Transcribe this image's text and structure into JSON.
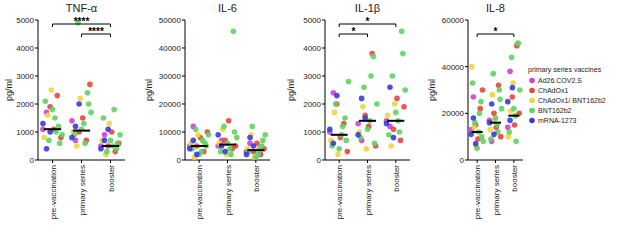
{
  "chart_data": [
    {
      "type": "scatter",
      "title": "TNF-α",
      "y_label": "pg/ml",
      "xlim": [
        -0.5,
        2.5
      ],
      "xticks": [
        {
          "value": 0,
          "label": "pre-vaccination"
        },
        {
          "value": 1,
          "label": "primary series"
        },
        {
          "value": 2,
          "label": "booster"
        }
      ],
      "ylim": [
        0,
        5000
      ],
      "yticks": [
        0,
        1000,
        2000,
        3000,
        4000,
        5000
      ],
      "medians": [
        1100,
        1050,
        500
      ],
      "annotations": [
        {
          "text": "****",
          "x": [
            1,
            2
          ]
        },
        {
          "text": "****",
          "x": [
            0,
            2
          ]
        }
      ],
      "series": [
        {
          "name": "Ad26.COV2.S",
          "color": "#cc44cc",
          "x": [
            0,
            0,
            1,
            1,
            2,
            2
          ],
          "values": [
            1100,
            1700,
            1400,
            700,
            500,
            900
          ]
        },
        {
          "name": "ChAdOx1",
          "color": "#e8453c",
          "x": [
            0,
            0,
            0,
            0,
            1,
            1,
            1,
            1,
            2,
            2,
            2,
            2
          ],
          "values": [
            1900,
            1100,
            2300,
            800,
            1000,
            1500,
            700,
            2700,
            500,
            1000,
            300,
            600
          ]
        },
        {
          "name": "ChAdOx1/ BNT162b2",
          "color": "#f2d43c",
          "x": [
            0,
            0,
            0,
            1,
            1,
            1,
            2,
            2,
            2
          ],
          "values": [
            800,
            1600,
            2500,
            1000,
            500,
            2200,
            700,
            200,
            1300
          ]
        },
        {
          "name": "BNT162b2",
          "color": "#5fd35f",
          "x": [
            0,
            0,
            0,
            0,
            0,
            0,
            0,
            0,
            1,
            1,
            1,
            1,
            1,
            1,
            1,
            1,
            2,
            2,
            2,
            2,
            2,
            2,
            2,
            2
          ],
          "values": [
            1500,
            1200,
            900,
            2100,
            700,
            1800,
            1000,
            600,
            1300,
            2400,
            1700,
            900,
            4900,
            1100,
            600,
            2000,
            500,
            400,
            900,
            1500,
            300,
            700,
            1800,
            600
          ]
        },
        {
          "name": "mRNA-1273",
          "color": "#3a3adf",
          "x": [
            0,
            0,
            0,
            1,
            1,
            1,
            2,
            2,
            2
          ],
          "values": [
            1300,
            400,
            1000,
            800,
            1200,
            2000,
            400,
            700,
            1100
          ]
        }
      ]
    },
    {
      "type": "scatter",
      "title": "IL-6",
      "y_label": "pg/ml",
      "xlim": [
        -0.5,
        2.5
      ],
      "xticks": [
        {
          "value": 0,
          "label": "pre-vaccination"
        },
        {
          "value": 1,
          "label": "primary series"
        },
        {
          "value": 2,
          "label": "booster"
        }
      ],
      "ylim": [
        0,
        50000
      ],
      "yticks": [
        0,
        10000,
        20000,
        30000,
        40000,
        50000
      ],
      "medians": [
        5000,
        5500,
        3500
      ],
      "annotations": [],
      "series": [
        {
          "name": "Ad26.COV2.S",
          "color": "#cc44cc",
          "x": [
            0,
            0,
            1,
            1,
            2,
            2
          ],
          "values": [
            5000,
            12000,
            5000,
            7000,
            3000,
            6000
          ]
        },
        {
          "name": "ChAdOx1",
          "color": "#e8453c",
          "x": [
            0,
            0,
            0,
            0,
            1,
            1,
            1,
            1,
            2,
            2,
            2,
            2
          ],
          "values": [
            5000,
            8000,
            3000,
            10000,
            7000,
            14000,
            4000,
            5000,
            3000,
            6000,
            2000,
            4000
          ]
        },
        {
          "name": "ChAdOx1/ BNT162b2",
          "color": "#f2d43c",
          "x": [
            0,
            0,
            0,
            1,
            1,
            1,
            2,
            2,
            2
          ],
          "values": [
            6000,
            1000,
            9000,
            6000,
            11000,
            2000,
            4000,
            9000,
            1000
          ]
        },
        {
          "name": "BNT162b2",
          "color": "#5fd35f",
          "x": [
            0,
            0,
            0,
            0,
            0,
            0,
            0,
            0,
            1,
            1,
            1,
            1,
            1,
            1,
            1,
            1,
            2,
            2,
            2,
            2,
            2,
            2,
            2,
            2
          ],
          "values": [
            3000,
            6000,
            9000,
            4000,
            11000,
            2000,
            7000,
            5000,
            4000,
            46000,
            8000,
            3000,
            12000,
            6000,
            2000,
            10000,
            2000,
            5000,
            9000,
            3000,
            12000,
            1000,
            4000,
            7000
          ]
        },
        {
          "name": "mRNA-1273",
          "color": "#3a3adf",
          "x": [
            0,
            0,
            0,
            1,
            1,
            1,
            2,
            2,
            2
          ],
          "values": [
            4000,
            7000,
            2000,
            9000,
            5000,
            3000,
            2000,
            8000,
            5000
          ]
        }
      ]
    },
    {
      "type": "scatter",
      "title": "IL-1β",
      "y_label": "pg/ml",
      "xlim": [
        -0.5,
        2.5
      ],
      "xticks": [
        {
          "value": 0,
          "label": "pre-vaccination"
        },
        {
          "value": 1,
          "label": "primary series"
        },
        {
          "value": 2,
          "label": "booster"
        }
      ],
      "ylim": [
        0,
        5000
      ],
      "yticks": [
        0,
        1000,
        2000,
        3000,
        4000,
        5000
      ],
      "medians": [
        900,
        1400,
        1400
      ],
      "annotations": [
        {
          "text": "*",
          "x": [
            0,
            1
          ]
        },
        {
          "text": "*",
          "x": [
            0,
            2
          ]
        }
      ],
      "series": [
        {
          "name": "Ad26.COV2.S",
          "color": "#cc44cc",
          "x": [
            0,
            0,
            1,
            1,
            2,
            2
          ],
          "values": [
            1000,
            2400,
            1300,
            700,
            1400,
            1200
          ]
        },
        {
          "name": "ChAdOx1",
          "color": "#e8453c",
          "x": [
            0,
            0,
            0,
            0,
            1,
            1,
            1,
            1,
            2,
            2,
            2,
            2
          ],
          "values": [
            2000,
            800,
            1300,
            300,
            1600,
            1200,
            3800,
            500,
            1100,
            2200,
            700,
            1900
          ]
        },
        {
          "name": "ChAdOx1/ BNT162b2",
          "color": "#f2d43c",
          "x": [
            0,
            0,
            0,
            1,
            1,
            1,
            2,
            2,
            2
          ],
          "values": [
            700,
            1700,
            200,
            1000,
            1900,
            400,
            1600,
            500,
            2000
          ]
        },
        {
          "name": "BNT162b2",
          "color": "#5fd35f",
          "x": [
            0,
            0,
            0,
            0,
            0,
            0,
            0,
            0,
            1,
            1,
            1,
            1,
            1,
            1,
            1,
            1,
            2,
            2,
            2,
            2,
            2,
            2,
            2,
            2
          ],
          "values": [
            900,
            1500,
            2800,
            500,
            2000,
            400,
            1200,
            700,
            1400,
            3700,
            2000,
            800,
            2600,
            1100,
            3000,
            600,
            1400,
            4600,
            2500,
            900,
            3000,
            1700,
            1000,
            3800
          ]
        },
        {
          "name": "mRNA-1273",
          "color": "#3a3adf",
          "x": [
            0,
            0,
            0,
            1,
            1,
            1,
            2,
            2,
            2
          ],
          "values": [
            1100,
            600,
            2300,
            900,
            2200,
            1500,
            1300,
            2600,
            800
          ]
        }
      ]
    },
    {
      "type": "scatter",
      "title": "IL-8",
      "y_label": "pg/ml",
      "xlim": [
        -0.5,
        2.5
      ],
      "xticks": [
        {
          "value": 0,
          "label": "pre-vaccination"
        },
        {
          "value": 1,
          "label": "primary series"
        },
        {
          "value": 2,
          "label": "booster"
        }
      ],
      "ylim": [
        0,
        60000
      ],
      "yticks": [
        0,
        20000,
        40000,
        60000
      ],
      "medians": [
        12000,
        16000,
        19000
      ],
      "annotations": [
        {
          "text": "*",
          "x": [
            0,
            2
          ]
        }
      ],
      "legend": "right",
      "legend_title": "primary series vaccines",
      "series": [
        {
          "name": "Ad26.COV2.S",
          "color": "#cc44cc",
          "x": [
            0,
            0,
            1,
            1,
            2,
            2
          ],
          "values": [
            13000,
            27000,
            17000,
            8000,
            14000,
            38000
          ]
        },
        {
          "name": "ChAdOx1",
          "color": "#e8453c",
          "x": [
            0,
            0,
            0,
            0,
            1,
            1,
            1,
            1,
            2,
            2,
            2,
            2
          ],
          "values": [
            15000,
            9000,
            22000,
            30000,
            20000,
            14000,
            32000,
            10000,
            27000,
            15000,
            49000,
            20000
          ]
        },
        {
          "name": "ChAdOx1/ BNT162b2",
          "color": "#f2d43c",
          "x": [
            0,
            0,
            0,
            1,
            1,
            1,
            2,
            2,
            2
          ],
          "values": [
            40000,
            14000,
            6000,
            13000,
            28000,
            17000,
            10000,
            21000,
            33000
          ]
        },
        {
          "name": "BNT162b2",
          "color": "#5fd35f",
          "x": [
            0,
            0,
            0,
            0,
            0,
            0,
            0,
            0,
            1,
            1,
            1,
            1,
            1,
            1,
            1,
            1,
            2,
            2,
            2,
            2,
            2,
            2,
            2,
            2
          ],
          "values": [
            12000,
            25000,
            8000,
            33000,
            16000,
            5000,
            20000,
            10000,
            15000,
            30000,
            22000,
            9000,
            37000,
            18000,
            12000,
            26000,
            19000,
            50000,
            30000,
            12000,
            44000,
            22000,
            8000,
            50000
          ]
        },
        {
          "name": "mRNA-1273",
          "color": "#3a3adf",
          "x": [
            0,
            0,
            0,
            1,
            1,
            1,
            2,
            2,
            2
          ],
          "values": [
            11000,
            18000,
            7000,
            16000,
            24000,
            11000,
            25000,
            17000,
            31000
          ]
        }
      ]
    }
  ]
}
